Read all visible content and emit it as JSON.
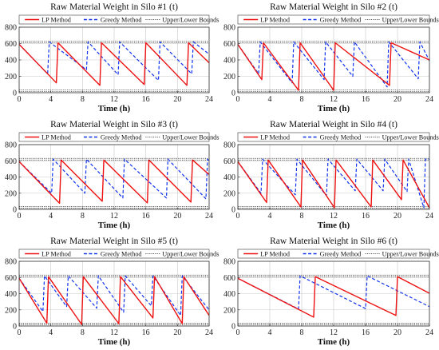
{
  "colors": {
    "lp": "#ee1111",
    "greedy": "#1133ee",
    "bounds": "#222222",
    "grid": "#c8c8c8",
    "axis": "#333333"
  },
  "legend_labels": {
    "lp": "LP Method",
    "greedy": "Greedy Method",
    "bounds": "Upper/Lower Bounds"
  },
  "chart_data": [
    {
      "type": "line",
      "title": "Raw Material Weight in Silo #1 (t)",
      "xlabel": "Time (h)",
      "ylabel": "",
      "xlim": [
        0,
        24
      ],
      "ylim": [
        0,
        800
      ],
      "xticks": [
        0,
        4,
        8,
        12,
        16,
        20,
        24
      ],
      "yticks": [
        0,
        200,
        400,
        600,
        800
      ],
      "grid": true,
      "legend": "top",
      "bounds": [
        620,
        25
      ],
      "series": [
        {
          "name": "LP Method",
          "key": "lp",
          "x": [
            0,
            4.7,
            4.9,
            10.2,
            10.4,
            15.8,
            16.0,
            21.2,
            21.4,
            24
          ],
          "y": [
            590,
            120,
            610,
            90,
            610,
            100,
            610,
            90,
            610,
            365
          ]
        },
        {
          "name": "Greedy Method",
          "key": "greedy",
          "x": [
            0,
            3.6,
            3.8,
            8.5,
            8.7,
            12.5,
            12.7,
            17.6,
            17.8,
            21.8,
            22.0,
            24
          ],
          "y": [
            590,
            230,
            620,
            280,
            620,
            220,
            620,
            150,
            620,
            230,
            620,
            470
          ]
        }
      ]
    },
    {
      "type": "line",
      "title": "Raw Material Weight in Silo #2 (t)",
      "xlabel": "Time (h)",
      "ylabel": "",
      "xlim": [
        0,
        24
      ],
      "ylim": [
        0,
        800
      ],
      "xticks": [
        0,
        4,
        8,
        12,
        16,
        20,
        24
      ],
      "yticks": [
        0,
        200,
        400,
        600,
        800
      ],
      "grid": true,
      "legend": "top",
      "bounds": [
        620,
        25
      ],
      "series": [
        {
          "name": "LP Method",
          "key": "lp",
          "x": [
            0,
            3.0,
            3.2,
            7.6,
            7.8,
            12.0,
            12.2,
            19.0,
            19.2,
            24
          ],
          "y": [
            590,
            160,
            610,
            30,
            610,
            30,
            610,
            90,
            610,
            400
          ]
        },
        {
          "name": "Greedy Method",
          "key": "greedy",
          "x": [
            0,
            2.6,
            2.8,
            6.8,
            7.0,
            10.8,
            11.0,
            14.4,
            14.6,
            18.7,
            18.9,
            22.6,
            22.8,
            24
          ],
          "y": [
            590,
            230,
            620,
            120,
            620,
            160,
            620,
            200,
            620,
            70,
            620,
            170,
            620,
            390
          ]
        }
      ]
    },
    {
      "type": "line",
      "title": "Raw Material Weight in Silo #3 (t)",
      "xlabel": "Time (h)",
      "ylabel": "",
      "xlim": [
        0,
        24
      ],
      "ylim": [
        0,
        800
      ],
      "xticks": [
        0,
        4,
        8,
        12,
        16,
        20,
        24
      ],
      "yticks": [
        0,
        200,
        400,
        600,
        800
      ],
      "grid": true,
      "legend": "top",
      "bounds": [
        620,
        25
      ],
      "series": [
        {
          "name": "LP Method",
          "key": "lp",
          "x": [
            0,
            5.1,
            5.3,
            10.5,
            10.7,
            16.2,
            16.4,
            21.7,
            21.9,
            24
          ],
          "y": [
            590,
            75,
            610,
            100,
            610,
            80,
            610,
            90,
            610,
            430
          ]
        },
        {
          "name": "Greedy Method",
          "key": "greedy",
          "x": [
            0,
            4.1,
            4.3,
            8.3,
            8.5,
            13.1,
            13.3,
            18.6,
            18.8,
            23.6,
            23.8,
            24
          ],
          "y": [
            590,
            200,
            620,
            200,
            620,
            140,
            620,
            140,
            620,
            130,
            620,
            600
          ]
        }
      ]
    },
    {
      "type": "line",
      "title": "Raw Material Weight in Silo #4 (t)",
      "xlabel": "Time (h)",
      "ylabel": "",
      "xlim": [
        0,
        24
      ],
      "ylim": [
        0,
        800
      ],
      "xticks": [
        0,
        4,
        8,
        12,
        16,
        20,
        24
      ],
      "yticks": [
        0,
        200,
        400,
        600,
        800
      ],
      "grid": true,
      "legend": "top",
      "bounds": [
        620,
        25
      ],
      "series": [
        {
          "name": "LP Method",
          "key": "lp",
          "x": [
            0,
            3.6,
            3.8,
            7.9,
            8.1,
            12.1,
            12.3,
            16.7,
            16.9,
            20.5,
            20.7,
            24
          ],
          "y": [
            590,
            85,
            610,
            30,
            610,
            20,
            610,
            30,
            610,
            120,
            610,
            20
          ]
        },
        {
          "name": "Greedy Method",
          "key": "greedy",
          "x": [
            0,
            2.9,
            3.1,
            7.2,
            7.4,
            11.1,
            11.3,
            14.7,
            14.9,
            18.2,
            18.4,
            21.2,
            21.4,
            23.3,
            23.5,
            24
          ],
          "y": [
            590,
            200,
            620,
            180,
            620,
            170,
            620,
            230,
            620,
            230,
            620,
            220,
            620,
            20,
            620,
            620
          ]
        }
      ]
    },
    {
      "type": "line",
      "title": "Raw Material Weight in Silo #5 (t)",
      "xlabel": "Time (h)",
      "ylabel": "",
      "xlim": [
        0,
        24
      ],
      "ylim": [
        0,
        800
      ],
      "xticks": [
        0,
        4,
        8,
        12,
        16,
        20,
        24
      ],
      "yticks": [
        0,
        200,
        400,
        600,
        800
      ],
      "grid": true,
      "legend": "top",
      "bounds": [
        620,
        25
      ],
      "series": [
        {
          "name": "LP Method",
          "key": "lp",
          "x": [
            0,
            3.5,
            3.7,
            7.9,
            8.1,
            12.6,
            12.8,
            16.9,
            17.1,
            20.6,
            20.8,
            24
          ],
          "y": [
            590,
            35,
            610,
            20,
            610,
            30,
            610,
            100,
            610,
            30,
            610,
            130
          ]
        },
        {
          "name": "Greedy Method",
          "key": "greedy",
          "x": [
            0,
            3.0,
            3.2,
            6.0,
            6.2,
            9.8,
            10.0,
            13.2,
            13.4,
            16.7,
            16.9,
            20.4,
            20.6,
            24
          ],
          "y": [
            590,
            180,
            620,
            240,
            620,
            220,
            620,
            170,
            620,
            250,
            620,
            130,
            620,
            200
          ]
        }
      ]
    },
    {
      "type": "line",
      "title": "Raw Material Weight in Silo #6 (t)",
      "xlabel": "Time (h)",
      "ylabel": "",
      "xlim": [
        0,
        24
      ],
      "ylim": [
        0,
        800
      ],
      "xticks": [
        0,
        4,
        8,
        12,
        16,
        20,
        24
      ],
      "yticks": [
        0,
        200,
        400,
        600,
        800
      ],
      "grid": true,
      "legend": "top",
      "bounds": [
        620,
        25
      ],
      "series": [
        {
          "name": "LP Method",
          "key": "lp",
          "x": [
            0,
            9.5,
            9.7,
            19.8,
            20.0,
            24
          ],
          "y": [
            590,
            110,
            610,
            130,
            610,
            405
          ]
        },
        {
          "name": "Greedy Method",
          "key": "greedy",
          "x": [
            0,
            7.6,
            7.8,
            16.0,
            16.2,
            24
          ],
          "y": [
            590,
            210,
            620,
            215,
            620,
            240
          ]
        }
      ]
    }
  ]
}
